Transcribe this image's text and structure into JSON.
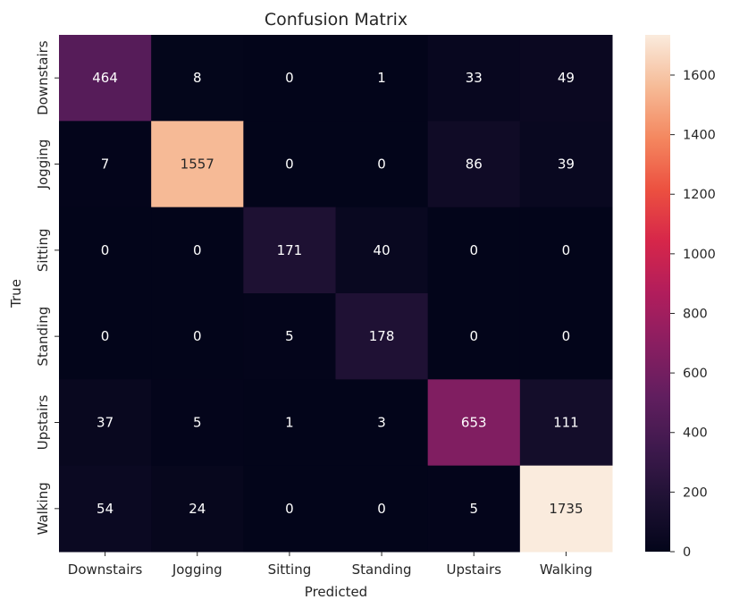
{
  "chart_data": {
    "type": "heatmap",
    "title": "Confusion Matrix",
    "xlabel": "Predicted",
    "ylabel": "True",
    "x_categories": [
      "Downstairs",
      "Jogging",
      "Sitting",
      "Standing",
      "Upstairs",
      "Walking"
    ],
    "y_categories": [
      "Downstairs",
      "Jogging",
      "Sitting",
      "Standing",
      "Upstairs",
      "Walking"
    ],
    "values": [
      [
        464,
        8,
        0,
        1,
        33,
        49
      ],
      [
        7,
        1557,
        0,
        0,
        86,
        39
      ],
      [
        0,
        0,
        171,
        40,
        0,
        0
      ],
      [
        0,
        0,
        5,
        178,
        0,
        0
      ],
      [
        37,
        5,
        1,
        3,
        653,
        111
      ],
      [
        54,
        24,
        0,
        0,
        5,
        1735
      ]
    ],
    "vmin": 0,
    "vmax": 1735,
    "colormap": "rocket",
    "colorbar_ticks": [
      0,
      200,
      400,
      600,
      800,
      1000,
      1200,
      1400,
      1600
    ],
    "annotations_shown": true,
    "grid": false
  }
}
